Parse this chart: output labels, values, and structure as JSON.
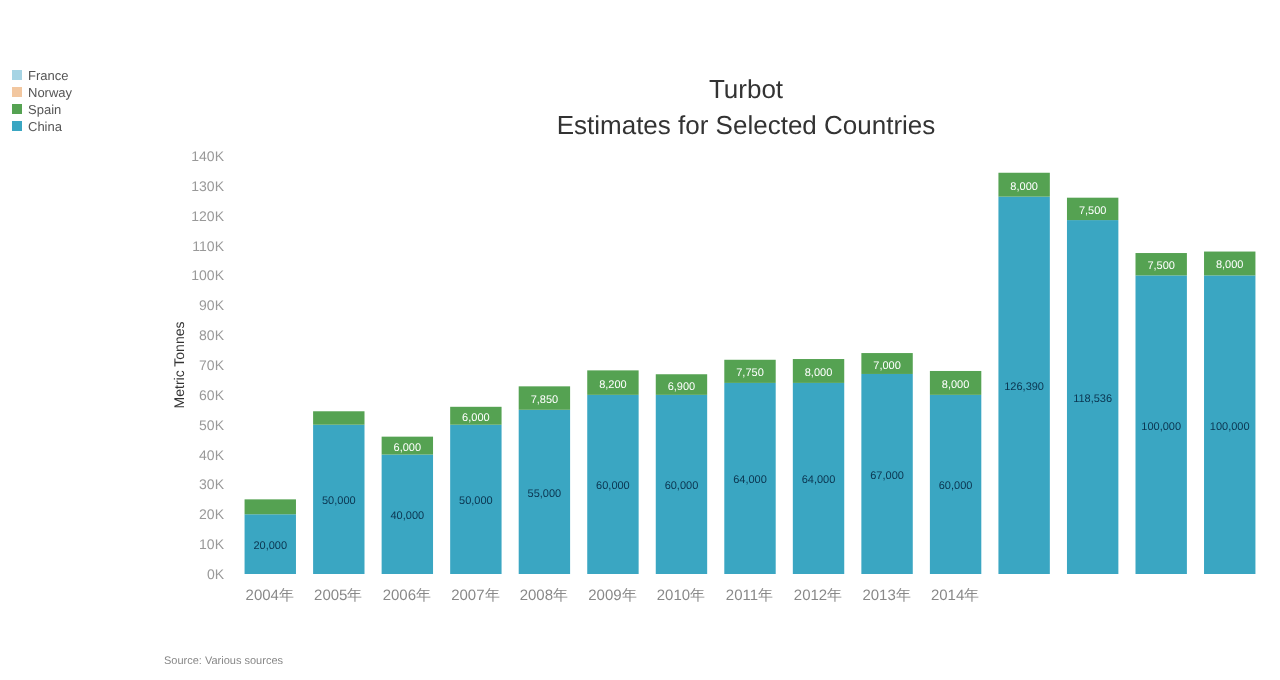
{
  "chart_data": {
    "type": "bar",
    "stacked": true,
    "title": "Turbot",
    "subtitle": "Estimates for Selected Countries",
    "ylabel": "Metric Tonnes",
    "categories": [
      "2004年",
      "2005年",
      "2006年",
      "2007年",
      "2008年",
      "2009年",
      "2010年",
      "2011年",
      "2012年",
      "2013年",
      "2014年",
      null,
      null,
      null,
      null
    ],
    "series": [
      {
        "name": "China",
        "color": "#3aa6c2",
        "values": [
          20000,
          50000,
          40000,
          50000,
          55000,
          60000,
          60000,
          64000,
          64000,
          67000,
          60000,
          126390,
          118536,
          100000,
          100000
        ],
        "value_labels": [
          "20,000",
          "50,000",
          "40,000",
          "50,000",
          "55,000",
          "60,000",
          "60,000",
          "64,000",
          "64,000",
          "67,000",
          "60,000",
          "126,390",
          "118,536",
          "100,000",
          "100,000"
        ]
      },
      {
        "name": "Spain",
        "color": "#55a252",
        "values": [
          5000,
          4500,
          6000,
          6000,
          7850,
          8200,
          6900,
          7750,
          8000,
          7000,
          8000,
          8000,
          7500,
          7500,
          8000
        ],
        "value_labels": [
          null,
          null,
          "6,000",
          "6,000",
          "7,850",
          "8,200",
          "6,900",
          "7,750",
          "8,000",
          "7,000",
          "8,000",
          "8,000",
          "7,500",
          "7,500",
          "8,000"
        ]
      },
      {
        "name": "Norway",
        "color": "#f2c7a0",
        "values": [
          null,
          null,
          null,
          null,
          null,
          null,
          null,
          null,
          null,
          null,
          null,
          null,
          null,
          null,
          null
        ]
      },
      {
        "name": "France",
        "color": "#a6d4e4",
        "values": [
          null,
          null,
          null,
          null,
          null,
          null,
          null,
          null,
          null,
          null,
          null,
          null,
          null,
          null,
          null
        ]
      }
    ],
    "ylim": [
      0,
      140000
    ],
    "yticks": [
      {
        "value": 0,
        "label": "0K"
      },
      {
        "value": 10000,
        "label": "10K"
      },
      {
        "value": 20000,
        "label": "20K"
      },
      {
        "value": 30000,
        "label": "30K"
      },
      {
        "value": 40000,
        "label": "40K"
      },
      {
        "value": 50000,
        "label": "50K"
      },
      {
        "value": 60000,
        "label": "60K"
      },
      {
        "value": 70000,
        "label": "70K"
      },
      {
        "value": 80000,
        "label": "80K"
      },
      {
        "value": 90000,
        "label": "90K"
      },
      {
        "value": 100000,
        "label": "100K"
      },
      {
        "value": 110000,
        "label": "110K"
      },
      {
        "value": 120000,
        "label": "120K"
      },
      {
        "value": 130000,
        "label": "130K"
      },
      {
        "value": 140000,
        "label": "140K"
      }
    ],
    "legend": "top left",
    "grid": false,
    "annotations": [
      "Source: Various sources"
    ]
  }
}
